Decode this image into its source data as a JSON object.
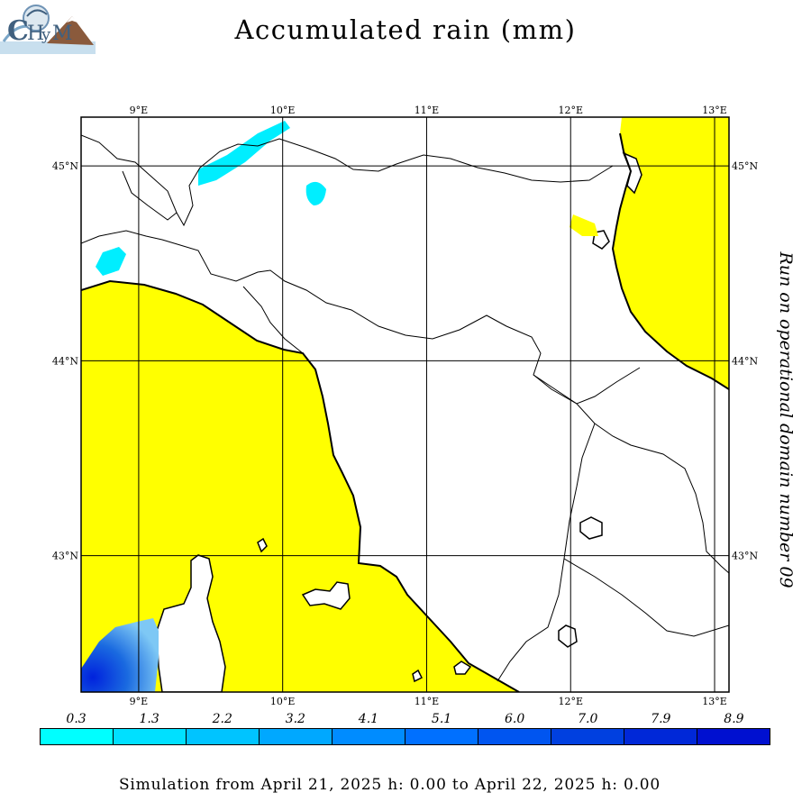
{
  "header": {
    "title": "Accumulated rain (mm)",
    "logo_text": "CHyM"
  },
  "side_note": "Run on operational domain number 09",
  "map": {
    "lon_range": [
      8.6,
      13.1
    ],
    "lat_range": [
      42.3,
      45.25
    ],
    "longitudes": [
      9,
      10,
      11,
      12,
      13
    ],
    "latitudes": [
      45,
      44,
      43
    ],
    "lon_labels": [
      "9°E",
      "10°E",
      "11°E",
      "12°E",
      "13°E"
    ],
    "lat_labels": [
      "45°N",
      "44°N",
      "43°N"
    ],
    "sea_color": "#ffff00",
    "land_color": "#ffffff",
    "rain_light_color": "#00eeff",
    "rain_heavy_color": "#0022dd"
  },
  "legend": {
    "labels": [
      "0.3",
      "1.3",
      "2.2",
      "3.2",
      "4.1",
      "5.1",
      "6.0",
      "7.0",
      "7.9",
      "8.9"
    ],
    "colors": [
      "#00ffff",
      "#00e0ff",
      "#00c4ff",
      "#00a8ff",
      "#008cff",
      "#0070ff",
      "#0055f0",
      "#0040e0",
      "#0028d8",
      "#0010d0"
    ]
  },
  "footer": "Simulation from April 21, 2025 h: 0.00 to April 22, 2025 h: 0.00"
}
